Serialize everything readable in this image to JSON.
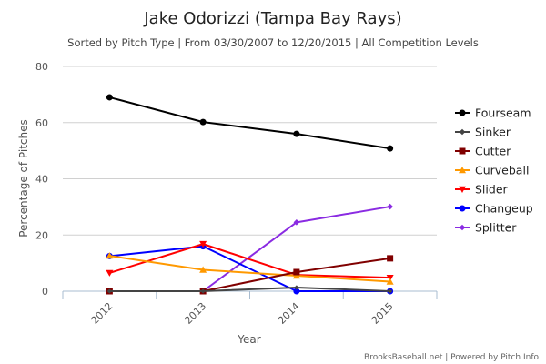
{
  "chart_data": {
    "type": "line",
    "title": "Jake Odorizzi (Tampa Bay Rays)",
    "subtitle": "Sorted by Pitch Type | From 03/30/2007 to 12/20/2015 | All Competition Levels",
    "xlabel": "Year",
    "ylabel": "Percentage of Pitches",
    "categories": [
      "2012",
      "2013",
      "2014",
      "2015"
    ],
    "yticks": [
      "0",
      "20",
      "40",
      "60",
      "80"
    ],
    "ylim": [
      0,
      80
    ],
    "grid": true,
    "legend_position": "right",
    "series": [
      {
        "name": "Fourseam",
        "color": "#000000",
        "marker": "circle",
        "values": [
          69.0,
          60.2,
          56.0,
          50.8
        ]
      },
      {
        "name": "Sinker",
        "color": "#444444",
        "marker": "diamond",
        "values": [
          0,
          0,
          1.3,
          0
        ]
      },
      {
        "name": "Cutter",
        "color": "#800000",
        "marker": "square",
        "values": [
          0,
          0,
          6.8,
          11.7
        ]
      },
      {
        "name": "Curveball",
        "color": "#ff9900",
        "marker": "triangle",
        "values": [
          12.6,
          7.6,
          5.5,
          3.4
        ]
      },
      {
        "name": "Slider",
        "color": "#ff0000",
        "marker": "triangle-down",
        "values": [
          6.5,
          16.8,
          5.8,
          4.8
        ]
      },
      {
        "name": "Changeup",
        "color": "#0000ff",
        "marker": "circle",
        "values": [
          12.5,
          16.0,
          0,
          0
        ]
      },
      {
        "name": "Splitter",
        "color": "#8a2be2",
        "marker": "diamond",
        "values": [
          0,
          0,
          24.5,
          30.1
        ]
      }
    ],
    "credit": "BrooksBaseball.net | Powered by Pitch Info"
  }
}
